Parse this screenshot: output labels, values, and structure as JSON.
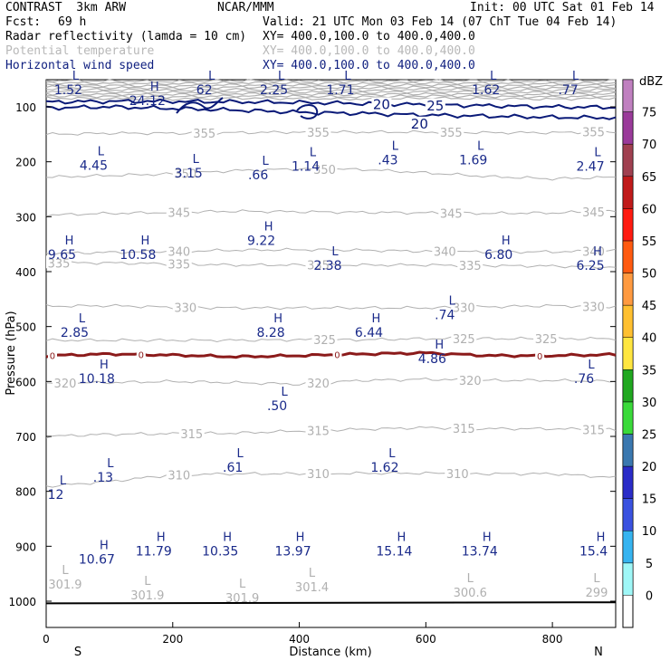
{
  "header": {
    "title": "CONTRAST  3km ARW",
    "org": "NCAR/MMM",
    "init": "Init: 00 UTC Sat 01 Feb 14",
    "fcst_label": "Fcst:",
    "fcst_value": "69 h",
    "valid": "Valid: 21 UTC Mon 03 Feb 14 (07 ChT Tue 04 Feb 14)"
  },
  "fields": [
    {
      "name": "Radar reflectivity (lamda = 10 cm)",
      "xy": "XY= 400.0,100.0 to 400.0,400.0",
      "color": "#000000"
    },
    {
      "name": "Potential temperature",
      "xy": "XY= 400.0,100.0 to 400.0,400.0",
      "color": "#b8b8b8"
    },
    {
      "name": "Horizontal wind speed",
      "xy": "XY= 400.0,100.0 to 400.0,400.0",
      "color": "#102080"
    }
  ],
  "colors": {
    "theta": "#b0b0b0",
    "wind": "#0a1a78",
    "freezing": "#8b1a1a",
    "label": "#1a2a8a",
    "ground": "#000000"
  },
  "chart_data": {
    "type": "cross-section",
    "xlabel": "Distance (km)",
    "ylabel": "Pressure (hPa)",
    "xlim": [
      0,
      900
    ],
    "ylim": [
      50,
      1045
    ],
    "x_ticks": [
      0,
      200,
      400,
      600,
      800
    ],
    "y_ticks": [
      100,
      200,
      300,
      400,
      500,
      600,
      700,
      800,
      900,
      1000
    ],
    "endpoints": {
      "left": "S",
      "right": "N"
    },
    "colorbar": {
      "unit": "dBZ",
      "levels": [
        0,
        5,
        10,
        15,
        20,
        25,
        30,
        35,
        40,
        45,
        50,
        55,
        60,
        65,
        70,
        75
      ],
      "colors": [
        "#9ff7f7",
        "#36b4f0",
        "#3a52e0",
        "#2a2cc8",
        "#3a78b0",
        "#3ada3a",
        "#20a820",
        "#ffe640",
        "#ffc030",
        "#ff9a40",
        "#ff5a10",
        "#ff1a10",
        "#c01a1a",
        "#a04050",
        "#9a3a9a",
        "#c080c0"
      ]
    },
    "theta_contours": [
      {
        "value": 355,
        "p": [
          150,
          148,
          148,
          147,
          146,
          146,
          146,
          147,
          147,
          145
        ],
        "label_x": [
          250,
          430,
          640,
          865
        ]
      },
      {
        "value": 350,
        "p": [
          228,
          225,
          222,
          216,
          213,
          214,
          220,
          227,
          231,
          228
        ],
        "label_x": [
          220,
          440
        ]
      },
      {
        "value": 345,
        "p": [
          297,
          294,
          292,
          290,
          291,
          292,
          293,
          294,
          293,
          290
        ],
        "label_x": [
          210,
          640,
          865
        ]
      },
      {
        "value": 340,
        "p": [
          367,
          365,
          363,
          361,
          360,
          361,
          363,
          364,
          364,
          362
        ],
        "label_x": [
          210,
          630,
          865
        ]
      },
      {
        "value": 335,
        "p": [
          384,
          384,
          386,
          388,
          388,
          388,
          388,
          389,
          390,
          392
        ],
        "label_x": [
          20,
          210,
          430,
          670
        ]
      },
      {
        "value": 330,
        "p": [
          463,
          462,
          465,
          466,
          466,
          466,
          466,
          464,
          462,
          464
        ],
        "label_x": [
          220,
          660,
          865
        ]
      },
      {
        "value": 325,
        "p": [
          525,
          525,
          525,
          525,
          524,
          524,
          522,
          522,
          522,
          522
        ],
        "label_x": [
          440,
          660,
          790
        ]
      },
      {
        "value": 320,
        "p": [
          603,
          602,
          600,
          602,
          605,
          598,
          596,
          598,
          598,
          600
        ],
        "label_x": [
          30,
          430,
          670
        ]
      },
      {
        "value": 315,
        "p": [
          700,
          696,
          695,
          694,
          690,
          687,
          684,
          686,
          686,
          688
        ],
        "label_x": [
          230,
          430,
          660,
          865
        ]
      },
      {
        "value": 310,
        "p": [
          791,
          782,
          770,
          768,
          768,
          767,
          767,
          768,
          768,
          775
        ],
        "label_x": [
          210,
          430,
          650
        ]
      }
    ],
    "freezing_level": {
      "value": 0,
      "p": [
        553,
        550,
        552,
        555,
        553,
        550,
        548,
        553,
        553,
        551
      ],
      "label_x": [
        10,
        150,
        460,
        780
      ]
    },
    "wind_contours": [
      {
        "value": 20,
        "p": [
          102,
          100,
          103,
          106,
          110,
          112,
          115,
          117,
          119,
          120
        ]
      },
      {
        "value": 25,
        "p": [
          91,
          90,
          90,
          91,
          92,
          94,
          96,
          98,
          100,
          101
        ]
      }
    ],
    "wind_contour_labels": [
      {
        "text": "20",
        "x": 530,
        "p": 96,
        "size": 15
      },
      {
        "text": "25",
        "x": 615,
        "p": 98,
        "size": 15
      },
      {
        "text": "20",
        "x": 590,
        "p": 131,
        "size": 15
      }
    ],
    "theta_extrema": [
      {
        "type": "L",
        "value": "301.9",
        "x": 30,
        "p": 970
      },
      {
        "type": "L",
        "value": "301.9",
        "x": 160,
        "p": 990
      },
      {
        "type": "L",
        "value": "301.9",
        "x": 310,
        "p": 995
      },
      {
        "type": "L",
        "value": "301.4",
        "x": 420,
        "p": 975
      },
      {
        "type": "L",
        "value": "300.6",
        "x": 670,
        "p": 985
      },
      {
        "type": "L",
        "value": "299",
        "x": 870,
        "p": 985
      }
    ],
    "wind_extrema": [
      {
        "type": "L",
        "value": "1.52",
        "x": 35,
        "p": 70
      },
      {
        "type": "H",
        "value": "24.12",
        "x": 160,
        "p": 90
      },
      {
        "type": "L",
        "value": "62",
        "x": 250,
        "p": 70
      },
      {
        "type": "L",
        "value": "2.25",
        "x": 360,
        "p": 70
      },
      {
        "type": "L",
        "value": "1.71",
        "x": 465,
        "p": 70
      },
      {
        "type": "L",
        "value": "1.62",
        "x": 695,
        "p": 70
      },
      {
        "type": "L",
        "value": ".77",
        "x": 825,
        "p": 70
      },
      {
        "type": "L",
        "value": "4.45",
        "x": 75,
        "p": 208
      },
      {
        "type": "L",
        "value": "3.15",
        "x": 225,
        "p": 222
      },
      {
        "type": "L",
        "value": ".66",
        "x": 335,
        "p": 225
      },
      {
        "type": "L",
        "value": "1.14",
        "x": 410,
        "p": 210
      },
      {
        "type": "L",
        "value": ".43",
        "x": 540,
        "p": 198
      },
      {
        "type": "L",
        "value": "1.69",
        "x": 675,
        "p": 198
      },
      {
        "type": "L",
        "value": "2.47",
        "x": 860,
        "p": 210
      },
      {
        "type": "H",
        "value": "9.65",
        "x": 25,
        "p": 370
      },
      {
        "type": "H",
        "value": "10.58",
        "x": 145,
        "p": 370
      },
      {
        "type": "H",
        "value": "9.22",
        "x": 340,
        "p": 345
      },
      {
        "type": "L",
        "value": "2.38",
        "x": 445,
        "p": 390
      },
      {
        "type": "H",
        "value": "6.80",
        "x": 715,
        "p": 370
      },
      {
        "type": "H",
        "value": "6.25",
        "x": 860,
        "p": 390
      },
      {
        "type": "L",
        "value": ".74",
        "x": 630,
        "p": 480
      },
      {
        "type": "L",
        "value": "2.85",
        "x": 45,
        "p": 512
      },
      {
        "type": "H",
        "value": "8.28",
        "x": 355,
        "p": 512
      },
      {
        "type": "H",
        "value": "6.44",
        "x": 510,
        "p": 512
      },
      {
        "type": "H",
        "value": "4.86",
        "x": 610,
        "p": 560
      },
      {
        "type": "H",
        "value": "10.18",
        "x": 80,
        "p": 596
      },
      {
        "type": "L",
        "value": ".76",
        "x": 850,
        "p": 596
      },
      {
        "type": "L",
        "value": ".50",
        "x": 365,
        "p": 646
      },
      {
        "type": "L",
        "value": ".61",
        "x": 295,
        "p": 758
      },
      {
        "type": "L",
        "value": "1.62",
        "x": 535,
        "p": 758
      },
      {
        "type": "L",
        "value": ".13",
        "x": 90,
        "p": 776
      },
      {
        "type": "L",
        "value": "12",
        "x": 15,
        "p": 807
      },
      {
        "type": "H",
        "value": "10.67",
        "x": 80,
        "p": 925
      },
      {
        "type": "H",
        "value": "11.79",
        "x": 170,
        "p": 910
      },
      {
        "type": "H",
        "value": "10.35",
        "x": 275,
        "p": 910
      },
      {
        "type": "H",
        "value": "13.97",
        "x": 390,
        "p": 910
      },
      {
        "type": "H",
        "value": "15.14",
        "x": 550,
        "p": 910
      },
      {
        "type": "H",
        "value": "13.74",
        "x": 685,
        "p": 910
      },
      {
        "type": "H",
        "value": "15.4",
        "x": 865,
        "p": 910
      }
    ]
  }
}
